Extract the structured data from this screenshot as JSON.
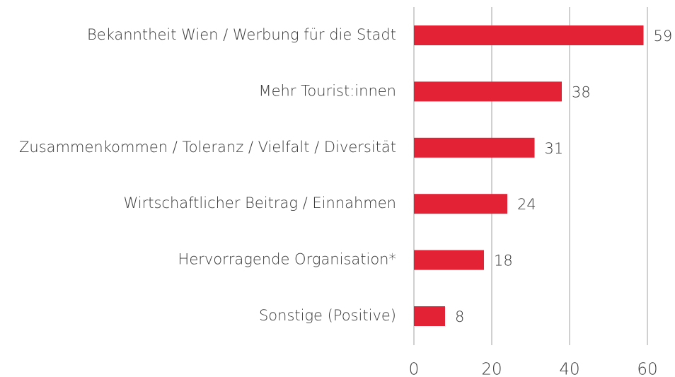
{
  "chart_data": {
    "type": "bar",
    "orientation": "horizontal",
    "categories": [
      "Bekanntheit Wien / Werbung für die Stadt",
      "Mehr Tourist:innen",
      "Zusammenkommen / Toleranz / Vielfalt / Diversität",
      "Wirtschaftlicher Beitrag / Einnahmen",
      "Hervorragende Organisation*",
      "Sonstige (Positive)"
    ],
    "values": [
      59,
      38,
      31,
      24,
      18,
      8
    ],
    "color": "#e32236",
    "xlim": [
      0,
      60
    ],
    "xticks": [
      0,
      20,
      40,
      60
    ],
    "grid": true
  }
}
